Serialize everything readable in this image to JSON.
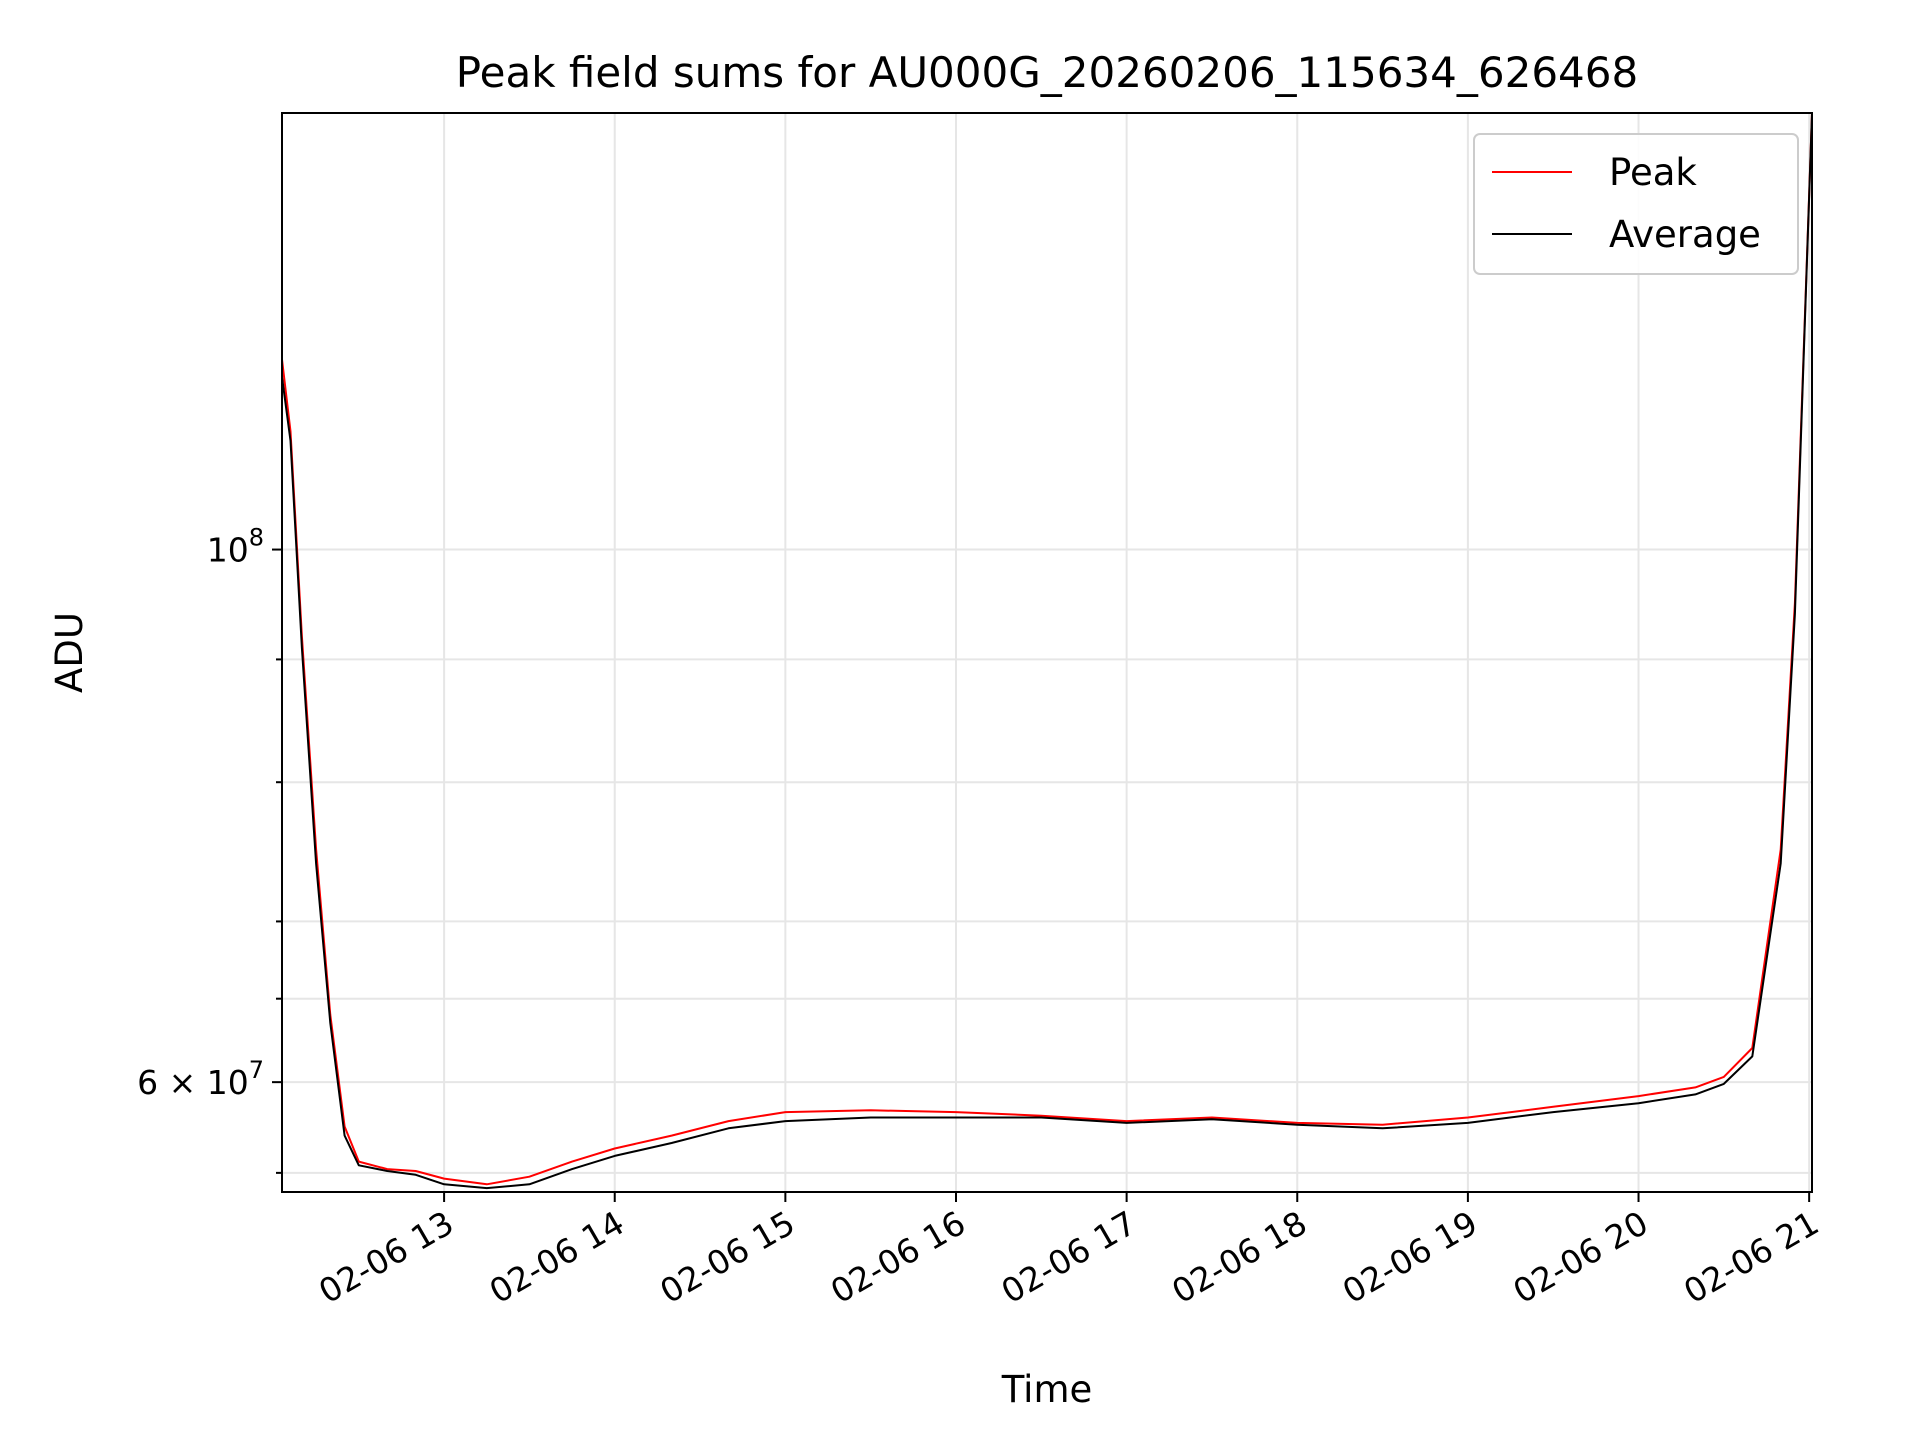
{
  "chart_data": {
    "type": "line",
    "title": "Peak field sums for AU000G_20260206_115634_626468",
    "xlabel": "Time",
    "ylabel": "ADU",
    "x_range": [
      "2026-02-06 12:03",
      "2026-02-06 21:01"
    ],
    "y_range": [
      54000000,
      152000000
    ],
    "y_scale": "log",
    "grid": true,
    "legend_position": "top-right",
    "x_ticks": [
      {
        "value": "2026-02-06 13:00",
        "label": "02-06 13"
      },
      {
        "value": "2026-02-06 14:00",
        "label": "02-06 14"
      },
      {
        "value": "2026-02-06 15:00",
        "label": "02-06 15"
      },
      {
        "value": "2026-02-06 16:00",
        "label": "02-06 16"
      },
      {
        "value": "2026-02-06 17:00",
        "label": "02-06 17"
      },
      {
        "value": "2026-02-06 18:00",
        "label": "02-06 18"
      },
      {
        "value": "2026-02-06 19:00",
        "label": "02-06 19"
      },
      {
        "value": "2026-02-06 20:00",
        "label": "02-06 20"
      },
      {
        "value": "2026-02-06 21:00",
        "label": "02-06 21"
      }
    ],
    "y_major_ticks": [
      {
        "value": 100000000,
        "base": "10",
        "exp": "8",
        "mantissa": ""
      },
      {
        "value": 60000000,
        "base": "10",
        "exp": "7",
        "mantissa": "6 × "
      }
    ],
    "y_minor_ticks": [
      55000000,
      65000000,
      70000000,
      80000000,
      90000000
    ],
    "series": [
      {
        "name": "Peak",
        "color": "#ff0000",
        "x": [
          "2026-02-06 12:03",
          "2026-02-06 12:06",
          "2026-02-06 12:10",
          "2026-02-06 12:15",
          "2026-02-06 12:20",
          "2026-02-06 12:25",
          "2026-02-06 12:30",
          "2026-02-06 12:40",
          "2026-02-06 12:50",
          "2026-02-06 13:00",
          "2026-02-06 13:15",
          "2026-02-06 13:30",
          "2026-02-06 13:45",
          "2026-02-06 14:00",
          "2026-02-06 14:20",
          "2026-02-06 14:40",
          "2026-02-06 15:00",
          "2026-02-06 15:30",
          "2026-02-06 16:00",
          "2026-02-06 16:30",
          "2026-02-06 17:00",
          "2026-02-06 17:30",
          "2026-02-06 18:00",
          "2026-02-06 18:30",
          "2026-02-06 19:00",
          "2026-02-06 19:30",
          "2026-02-06 20:00",
          "2026-02-06 20:20",
          "2026-02-06 20:30",
          "2026-02-06 20:40",
          "2026-02-06 20:50",
          "2026-02-06 20:55",
          "2026-02-06 21:01"
        ],
        "y": [
          120000000,
          112000000,
          92000000,
          75000000,
          64000000,
          57500000,
          55600000,
          55200000,
          55100000,
          54700000,
          54400000,
          54800000,
          55600000,
          56300000,
          57000000,
          57800000,
          58300000,
          58400000,
          58300000,
          58100000,
          57800000,
          58000000,
          57700000,
          57600000,
          58000000,
          58600000,
          59200000,
          59700000,
          60300000,
          62000000,
          75000000,
          95000000,
          152000000
        ]
      },
      {
        "name": "Average",
        "color": "#000000",
        "x": [
          "2026-02-06 12:03",
          "2026-02-06 12:06",
          "2026-02-06 12:10",
          "2026-02-06 12:15",
          "2026-02-06 12:20",
          "2026-02-06 12:25",
          "2026-02-06 12:30",
          "2026-02-06 12:40",
          "2026-02-06 12:50",
          "2026-02-06 13:00",
          "2026-02-06 13:15",
          "2026-02-06 13:30",
          "2026-02-06 13:45",
          "2026-02-06 14:00",
          "2026-02-06 14:20",
          "2026-02-06 14:40",
          "2026-02-06 15:00",
          "2026-02-06 15:30",
          "2026-02-06 16:00",
          "2026-02-06 16:30",
          "2026-02-06 17:00",
          "2026-02-06 17:30",
          "2026-02-06 18:00",
          "2026-02-06 18:30",
          "2026-02-06 19:00",
          "2026-02-06 19:30",
          "2026-02-06 20:00",
          "2026-02-06 20:20",
          "2026-02-06 20:30",
          "2026-02-06 20:40",
          "2026-02-06 20:50",
          "2026-02-06 20:55",
          "2026-02-06 21:01"
        ],
        "y": [
          118000000,
          111000000,
          91000000,
          74000000,
          63500000,
          57000000,
          55400000,
          55100000,
          54900000,
          54400000,
          54200000,
          54400000,
          55200000,
          55900000,
          56600000,
          57400000,
          57800000,
          58000000,
          58000000,
          58000000,
          57700000,
          57900000,
          57600000,
          57400000,
          57700000,
          58300000,
          58800000,
          59300000,
          59900000,
          61500000,
          74000000,
          94000000,
          152000000
        ]
      }
    ]
  }
}
